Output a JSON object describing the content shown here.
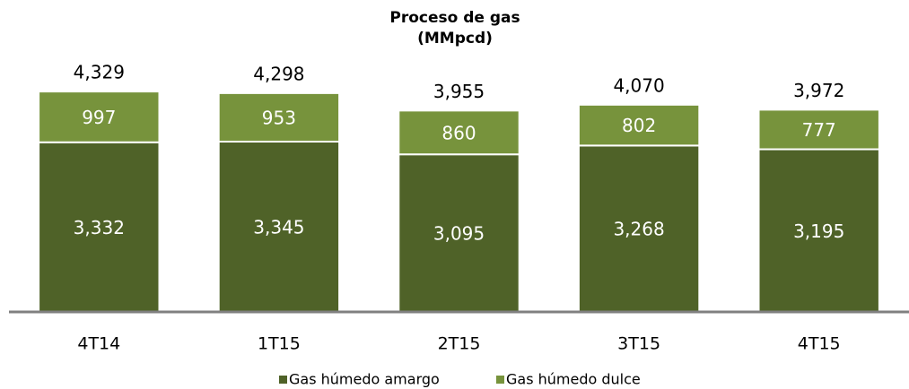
{
  "chart_data": {
    "type": "stacked-bar",
    "title": "Proceso de gas",
    "subtitle": "(MMpcd)",
    "categories": [
      "4T14",
      "1T15",
      "2T15",
      "3T15",
      "4T15"
    ],
    "series": [
      {
        "name": "Gas húmedo amargo",
        "color": "#4f6228",
        "values": [
          3332,
          3345,
          3095,
          3268,
          3195
        ],
        "value_labels": [
          "3,332",
          "3,345",
          "3,095",
          "3,268",
          "3,195"
        ]
      },
      {
        "name": "Gas húmedo dulce",
        "color": "#77933c",
        "values": [
          997,
          953,
          860,
          802,
          777
        ],
        "value_labels": [
          "997",
          "953",
          "860",
          "802",
          "777"
        ]
      }
    ],
    "totals": {
      "values": [
        4329,
        4298,
        3955,
        4070,
        3972
      ],
      "value_labels": [
        "4,329",
        "4,298",
        "3,955",
        "4,070",
        "3,972"
      ]
    },
    "ylim": [
      0,
      5000
    ],
    "legend": "bottom"
  }
}
